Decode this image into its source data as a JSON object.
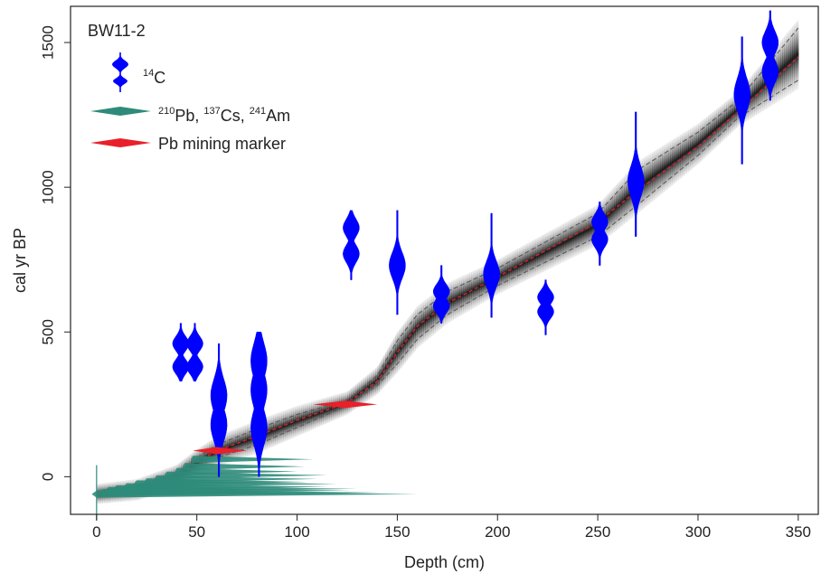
{
  "chart_data": {
    "type": "scatter",
    "title": "BW11-2",
    "xlabel": "Depth (cm)",
    "ylabel": "cal yr BP",
    "xlim": [
      -13,
      360
    ],
    "ylim": [
      -130,
      1625
    ],
    "x_ticks": [
      0,
      50,
      100,
      150,
      200,
      250,
      300,
      350
    ],
    "y_ticks": [
      0,
      500,
      1000,
      1500
    ],
    "grid": false,
    "legend_position": "top-left",
    "legend": [
      {
        "key": "c14",
        "iso": "14",
        "text": "C",
        "color": "#0000ff"
      },
      {
        "key": "pb210",
        "parts": [
          {
            "sup": "210",
            "t": "Pb, "
          },
          {
            "sup": "137",
            "t": "Cs, "
          },
          {
            "sup": "241",
            "t": "Am"
          }
        ],
        "color": "#2e8b7a"
      },
      {
        "key": "pbmining",
        "text": "Pb mining marker",
        "color": "#e8202a"
      }
    ],
    "age_model": {
      "depth": [
        0,
        20,
        40,
        50,
        60,
        80,
        100,
        125,
        140,
        150,
        160,
        175,
        200,
        250,
        270,
        300,
        320,
        350
      ],
      "median": [
        -60,
        -45,
        0,
        50,
        90,
        140,
        195,
        255,
        330,
        430,
        520,
        600,
        690,
        880,
        990,
        1140,
        1260,
        1450
      ],
      "lower": [
        -65,
        -52,
        -12,
        35,
        65,
        110,
        170,
        245,
        315,
        390,
        475,
        560,
        660,
        830,
        940,
        1110,
        1240,
        1370
      ],
      "upper": [
        -55,
        -38,
        12,
        65,
        110,
        165,
        215,
        265,
        350,
        470,
        560,
        640,
        720,
        910,
        1060,
        1190,
        1300,
        1550
      ]
    },
    "c14_dates": [
      {
        "depth": 42,
        "min": 330,
        "max": 530,
        "peaks": [
          460,
          380
        ]
      },
      {
        "depth": 49,
        "min": 330,
        "max": 530,
        "peaks": [
          460,
          380
        ]
      },
      {
        "depth": 61,
        "min": 0,
        "max": 460,
        "peaks": [
          280,
          180
        ]
      },
      {
        "depth": 81,
        "min": 0,
        "max": 500,
        "peaks": [
          400,
          300,
          170
        ]
      },
      {
        "depth": 127,
        "min": 680,
        "max": 920,
        "peaks": [
          860,
          770
        ]
      },
      {
        "depth": 150,
        "min": 560,
        "max": 920,
        "peaks": [
          730
        ]
      },
      {
        "depth": 172,
        "min": 530,
        "max": 730,
        "peaks": [
          640,
          590
        ]
      },
      {
        "depth": 197,
        "min": 550,
        "max": 910,
        "peaks": [
          700
        ]
      },
      {
        "depth": 224,
        "min": 490,
        "max": 680,
        "peaks": [
          620,
          570
        ]
      },
      {
        "depth": 251,
        "min": 730,
        "max": 950,
        "peaks": [
          880,
          820
        ]
      },
      {
        "depth": 269,
        "min": 830,
        "max": 1260,
        "peaks": [
          1020
        ]
      },
      {
        "depth": 322,
        "min": 1080,
        "max": 1520,
        "peaks": [
          1320
        ]
      },
      {
        "depth": 336,
        "min": 1300,
        "max": 1610,
        "peaks": [
          1500,
          1400
        ]
      }
    ],
    "pb210_dates": [
      {
        "depth": 0,
        "age": -60,
        "width": 8
      },
      {
        "depth": 3,
        "age": -55,
        "width": 7
      },
      {
        "depth": 6,
        "age": -48,
        "width": 6
      },
      {
        "depth": 10,
        "age": -42,
        "width": 6
      },
      {
        "depth": 15,
        "age": -35,
        "width": 5
      },
      {
        "depth": 20,
        "age": -25,
        "width": 5
      },
      {
        "depth": 25,
        "age": -18,
        "width": 4
      },
      {
        "depth": 30,
        "age": -8,
        "width": 4
      },
      {
        "depth": 35,
        "age": 5,
        "width": 4
      },
      {
        "depth": 40,
        "age": 18,
        "width": 3
      },
      {
        "depth": 44,
        "age": 35,
        "width": 3
      },
      {
        "depth": 48,
        "age": 60,
        "width": 3
      }
    ],
    "pb_mining_markers": [
      {
        "depth": 60,
        "age": 90,
        "min_depth": 48,
        "max_depth": 75
      },
      {
        "depth": 124,
        "age": 250,
        "min_depth": 108,
        "max_depth": 140
      }
    ]
  }
}
